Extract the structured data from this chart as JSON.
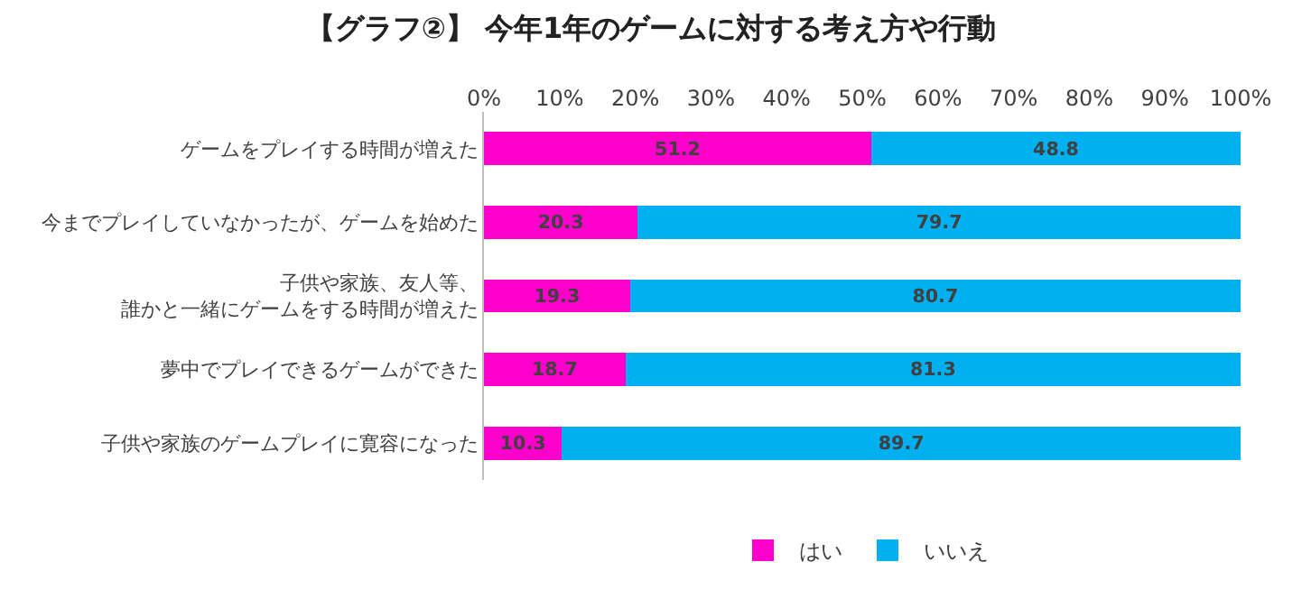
{
  "chart_data": {
    "type": "bar",
    "title": "【グラフ②】 今年1年のゲームに対する考え方や行動",
    "orientation": "horizontal",
    "stacked": true,
    "categories": [
      "ゲームをプレイする時間が増えた",
      "今までプレイしていなかったが、ゲームを始めた",
      "子供や家族、友人等、誰かと一緒にゲームをする時間が増えた",
      "夢中でプレイできるゲームができた",
      "子供や家族のゲームプレイに寛容になった"
    ],
    "series": [
      {
        "name": "はい",
        "color": "#ff00cc",
        "values": [
          51.2,
          20.3,
          19.3,
          18.7,
          10.3
        ]
      },
      {
        "name": "いいえ",
        "color": "#00b0f0",
        "values": [
          48.8,
          79.7,
          80.7,
          81.3,
          89.7
        ]
      }
    ],
    "xlim": [
      0,
      100
    ],
    "xticks": [
      {
        "value": 0,
        "label": "0%"
      },
      {
        "value": 10,
        "label": "10%"
      },
      {
        "value": 20,
        "label": "20%"
      },
      {
        "value": 30,
        "label": "30%"
      },
      {
        "value": 40,
        "label": "40%"
      },
      {
        "value": 50,
        "label": "50%"
      },
      {
        "value": 60,
        "label": "60%"
      },
      {
        "value": 70,
        "label": "70%"
      },
      {
        "value": 80,
        "label": "80%"
      },
      {
        "value": 90,
        "label": "90%"
      },
      {
        "value": 100,
        "label": "100%"
      }
    ],
    "data_labels": true,
    "legend": "bottom"
  }
}
